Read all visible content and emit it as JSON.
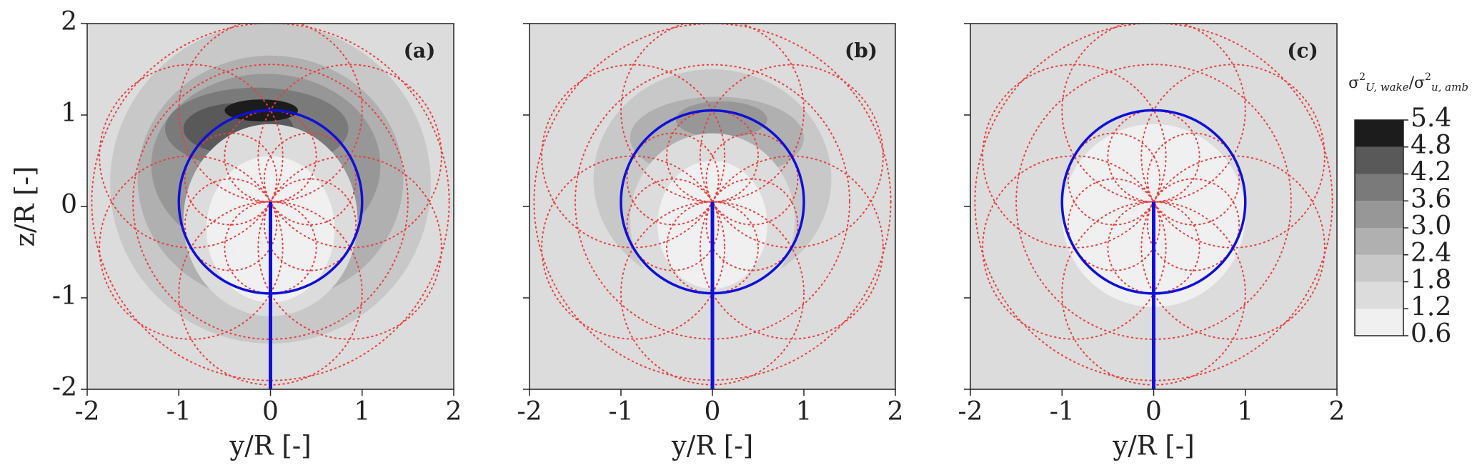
{
  "chart_data": {
    "type": "contour",
    "panels": [
      {
        "annotation": "(a)",
        "xlabel": "y/R [-]",
        "ylabel": "z/R [-]",
        "xlim": [
          -2,
          2
        ],
        "ylim": [
          -2,
          2
        ],
        "xticks": [
          -2,
          -1,
          0,
          1,
          2
        ],
        "yticks": [
          -2,
          -1,
          0,
          1,
          2
        ]
      },
      {
        "annotation": "(b)",
        "xlabel": "y/R [-]",
        "xlim": [
          -2,
          2
        ],
        "ylim": [
          -2,
          2
        ],
        "xticks": [
          -2,
          -1,
          0,
          1,
          2
        ]
      },
      {
        "annotation": "(c)",
        "xlabel": "y/R [-]",
        "xlim": [
          -2,
          2
        ],
        "ylim": [
          -2,
          2
        ],
        "xticks": [
          -2,
          -1,
          0,
          1,
          2
        ]
      }
    ],
    "colorbar": {
      "label": [
        "σ",
        "2",
        "U, wake",
        "/σ",
        "2",
        "u, amb"
      ],
      "levels": [
        0.6,
        1.2,
        1.8,
        2.4,
        {
          "value": 3,
          "label": "3.0"
        },
        3.6,
        4.2,
        4.8,
        5.4
      ],
      "colors": [
        "#f0f0f0",
        "#dcdcdc",
        "#c8c8c8",
        "#b0b0b0",
        "#979797",
        "#7a7a7a",
        "#595959",
        "#1c1c1c"
      ]
    }
  }
}
